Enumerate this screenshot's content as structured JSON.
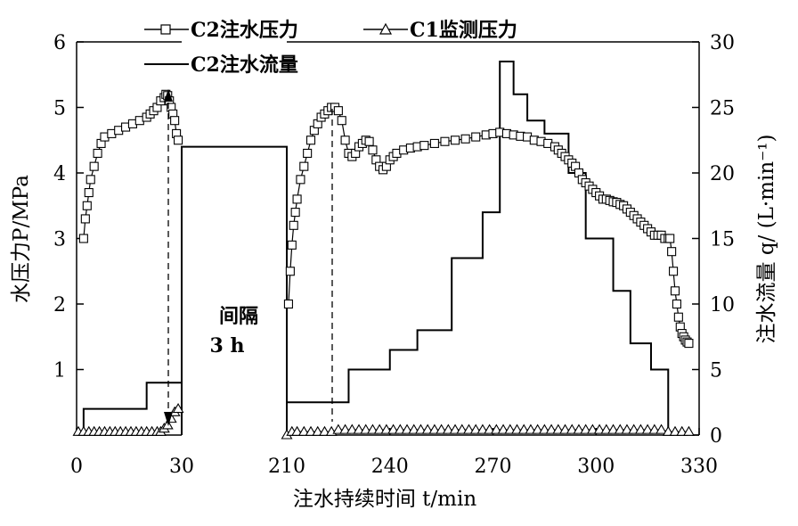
{
  "chart_data": {
    "type": "line",
    "xlabel": "注水持续时间 t/min",
    "ylabel_left": "水压力P/MPa",
    "ylabel_right": "注水流量 q/ (L·min⁻¹)",
    "x_ticks": [
      "0",
      "30",
      "210",
      "240",
      "270",
      "300",
      "330"
    ],
    "x_break": {
      "before": 30,
      "after": 210
    },
    "ylim_left": [
      0,
      6
    ],
    "ylim_right": [
      0,
      30
    ],
    "y_ticks_left": [
      "1",
      "2",
      "3",
      "4",
      "5",
      "6"
    ],
    "y_ticks_right": [
      "0",
      "5",
      "10",
      "15",
      "20",
      "25",
      "30"
    ],
    "legend": [
      "C2注水压力",
      "C1监测压力",
      "C2注水流量"
    ],
    "legend_position": "top",
    "annotations": [
      {
        "text": "间隔"
      },
      {
        "text": "3 h"
      }
    ],
    "gap_flow": 22,
    "series": [
      {
        "name": "C2注水压力",
        "axis": "left",
        "marker": "square",
        "x": [
          2,
          2.5,
          3,
          3.5,
          4,
          5,
          6,
          7,
          8,
          10,
          12,
          14,
          16,
          18,
          20,
          21,
          22,
          23,
          24,
          25,
          25.5,
          26,
          26.5,
          27,
          27.5,
          28,
          28.5,
          29,
          210.5,
          211,
          211.5,
          212,
          212.5,
          213,
          214,
          215,
          216,
          217,
          218,
          219,
          220,
          221,
          222,
          223,
          224,
          225,
          226,
          227,
          228,
          229,
          230,
          231,
          232,
          233,
          234,
          235,
          236,
          237,
          238,
          239,
          240,
          241,
          242,
          244,
          246,
          248,
          250,
          253,
          256,
          259,
          262,
          265,
          268,
          270,
          272,
          274,
          276,
          278,
          280,
          282,
          284,
          286,
          288,
          289,
          290,
          291,
          292,
          293,
          294,
          295,
          296,
          297,
          298,
          299,
          300,
          301,
          302,
          303,
          304,
          305,
          306,
          307,
          308,
          309,
          310,
          311,
          312,
          313,
          314,
          315,
          316,
          317,
          318,
          319,
          320,
          321,
          321.5,
          322,
          322.5,
          323,
          323.5,
          324,
          324.5,
          325,
          325.5,
          326,
          326.5,
          327
        ],
        "y": [
          3.0,
          3.3,
          3.5,
          3.7,
          3.9,
          4.1,
          4.3,
          4.45,
          4.55,
          4.6,
          4.65,
          4.7,
          4.75,
          4.8,
          4.85,
          4.9,
          4.95,
          5.0,
          5.1,
          5.15,
          5.2,
          5.18,
          5.1,
          5.0,
          4.9,
          4.8,
          4.6,
          4.5,
          2.0,
          2.5,
          2.9,
          3.2,
          3.4,
          3.6,
          3.9,
          4.1,
          4.3,
          4.5,
          4.65,
          4.75,
          4.85,
          4.9,
          4.95,
          5.0,
          5.0,
          4.95,
          4.8,
          4.5,
          4.3,
          4.25,
          4.3,
          4.4,
          4.45,
          4.5,
          4.48,
          4.35,
          4.2,
          4.1,
          4.05,
          4.1,
          4.2,
          4.25,
          4.3,
          4.35,
          4.38,
          4.4,
          4.42,
          4.45,
          4.48,
          4.5,
          4.52,
          4.55,
          4.58,
          4.6,
          4.62,
          4.6,
          4.58,
          4.56,
          4.55,
          4.5,
          4.48,
          4.45,
          4.4,
          4.35,
          4.3,
          4.25,
          4.2,
          4.15,
          4.1,
          4.0,
          3.9,
          3.85,
          3.8,
          3.75,
          3.7,
          3.65,
          3.6,
          3.6,
          3.58,
          3.56,
          3.55,
          3.52,
          3.5,
          3.45,
          3.4,
          3.35,
          3.3,
          3.25,
          3.2,
          3.15,
          3.1,
          3.05,
          3.05,
          3.05,
          3.0,
          3.0,
          3.0,
          2.8,
          2.5,
          2.2,
          2.0,
          1.8,
          1.65,
          1.55,
          1.5,
          1.45,
          1.42,
          1.4
        ]
      },
      {
        "name": "C1监测压力",
        "axis": "left",
        "marker": "triangle",
        "x": [
          0.5,
          2,
          3.5,
          5,
          6.5,
          8,
          9.5,
          11,
          12.5,
          14,
          15.5,
          17,
          18.5,
          20,
          21.5,
          23,
          24,
          25,
          26,
          27,
          28,
          29,
          210,
          211.5,
          213,
          215,
          217,
          219,
          221,
          223,
          225,
          227,
          229,
          231,
          233,
          235,
          237,
          239,
          241,
          243,
          245,
          247,
          249,
          251,
          253,
          255,
          257,
          259,
          261,
          263,
          265,
          267,
          269,
          271,
          273,
          275,
          277,
          279,
          281,
          283,
          285,
          287,
          289,
          291,
          293,
          295,
          297,
          299,
          301,
          303,
          305,
          307,
          309,
          311,
          313,
          315,
          317,
          319,
          321,
          323,
          325,
          327
        ],
        "y": [
          0.05,
          0.05,
          0.05,
          0.05,
          0.05,
          0.05,
          0.05,
          0.05,
          0.05,
          0.05,
          0.05,
          0.05,
          0.05,
          0.05,
          0.05,
          0.05,
          0.05,
          0.1,
          0.15,
          0.25,
          0.35,
          0.4,
          0.0,
          0.05,
          0.05,
          0.05,
          0.05,
          0.05,
          0.05,
          0.05,
          0.08,
          0.08,
          0.08,
          0.08,
          0.08,
          0.08,
          0.08,
          0.08,
          0.08,
          0.08,
          0.08,
          0.08,
          0.08,
          0.08,
          0.08,
          0.08,
          0.08,
          0.08,
          0.08,
          0.08,
          0.08,
          0.08,
          0.08,
          0.08,
          0.08,
          0.08,
          0.08,
          0.08,
          0.08,
          0.08,
          0.08,
          0.08,
          0.08,
          0.08,
          0.08,
          0.08,
          0.08,
          0.08,
          0.08,
          0.08,
          0.08,
          0.08,
          0.08,
          0.08,
          0.08,
          0.08,
          0.08,
          0.08,
          0.05,
          0.05,
          0.05,
          0.05
        ]
      },
      {
        "name": "C2注水流量",
        "axis": "right",
        "marker": "none",
        "x": [
          2,
          2,
          20,
          20,
          30,
          30,
          210,
          210,
          228,
          228,
          240,
          240,
          248,
          248,
          258,
          258,
          267,
          267,
          272,
          272,
          276,
          276,
          280,
          280,
          285,
          285,
          292,
          292,
          297,
          297,
          305,
          305,
          310,
          310,
          316,
          316,
          321,
          321
        ],
        "y": [
          0,
          2,
          2,
          4,
          4,
          22,
          22,
          2.5,
          2.5,
          5,
          5,
          6.5,
          6.5,
          8,
          8,
          13.5,
          13.5,
          17,
          17,
          28.5,
          28.5,
          26,
          26,
          24,
          24,
          23,
          23,
          20,
          20,
          15,
          15,
          11,
          11,
          7,
          7,
          5,
          5,
          0
        ]
      }
    ]
  }
}
